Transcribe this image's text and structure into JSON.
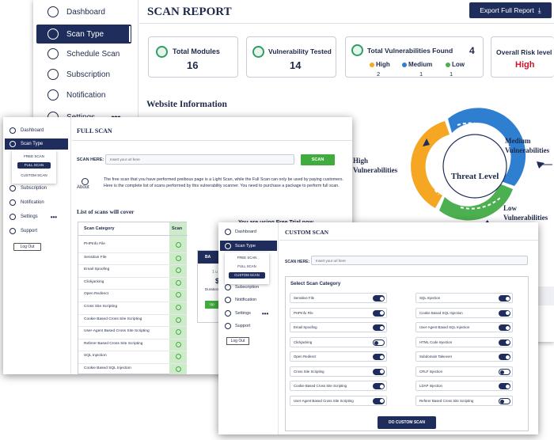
{
  "main": {
    "sidebar": {
      "items": [
        {
          "label": "Dashboard",
          "icon": "dashboard-icon"
        },
        {
          "label": "Scan Type",
          "icon": "scan-icon"
        },
        {
          "label": "Schedule Scan",
          "icon": "clock-icon"
        },
        {
          "label": "Subscription",
          "icon": "dollar-icon"
        },
        {
          "label": "Notification",
          "icon": "bell-icon"
        },
        {
          "label": "Settings",
          "icon": "gear-icon"
        }
      ]
    },
    "title": "SCAN REPORT",
    "export_label": "Export Full Report",
    "cards": {
      "total_modules_label": "Total Modules",
      "total_modules_value": "16",
      "vuln_tested_label": "Vulnerability Tested",
      "vuln_tested_value": "14",
      "total_found_label": "Total Vulnerabilities Found",
      "total_found_value": "4",
      "high_label": "High",
      "high_value": "2",
      "medium_label": "Medium",
      "medium_value": "1",
      "low_label": "Low",
      "low_value": "1",
      "risk_label": "Overall Risk level",
      "risk_value": "High"
    },
    "website_info": "Website Information",
    "threat": {
      "center": "Threat Level",
      "high_1": "High",
      "high_2": "Vulnerabilities",
      "medium_1": "Medium",
      "medium_2": "Vulnerabilities",
      "low_1": "Low",
      "low_2": "Vulnerabilities",
      "colors": {
        "high": "#f5a623",
        "medium": "#2f7fd0",
        "low": "#4caf50"
      }
    }
  },
  "full": {
    "sidebar": {
      "dashboard": "Dashboard",
      "scan_type": "Scan Type",
      "free": "FREE SCAN",
      "full": "FULL SCAN",
      "custom": "CUSTOM SCAN",
      "subscription": "Subscription",
      "notification": "Notification",
      "settings": "Settings",
      "support": "Support",
      "logout": "Log Out"
    },
    "title": "FULL SCAN",
    "scan_here": "SCAN HERE:",
    "url_placeholder": "Insert your url here",
    "scan_button": "SCAN",
    "about_label": "About",
    "about_text": "The free scan that you have performed preibous page is a Light Scan, while the Full Scan can only be used by paying customers. Here is the complete list of scans performed by this vulnerability scanner. You need to purchase a package to perform full scan.",
    "list_title": "List of scans will cover",
    "table_head": {
      "category": "Scan Category",
      "scan": "Scan"
    },
    "rows": [
      "PHPInfo File",
      "Sensitive File",
      "Email Spoofing",
      "Clickjacking",
      "Open Redirect",
      "Cross Site Scripting",
      "Cookie Based Cross Site Scripting",
      "User-Agent Based Cross Site Scripting",
      "Referer Based Cross Site Scripting",
      "SQL Injection",
      "Cookie Based SQL Injection"
    ],
    "trial": "You are using Free Trial now",
    "plan": {
      "tag": "BA",
      "one": "1 u",
      "price": "$4",
      "duration": "Duration",
      "btn": "Up"
    }
  },
  "custom": {
    "sidebar": {
      "dashboard": "Dashboard",
      "scan_type": "Scan Type",
      "free": "FREE SCAN",
      "full": "FULL SCAN",
      "custom": "CUSTOM SCAN",
      "subscription": "Subscription",
      "notification": "Notification",
      "settings": "Settings",
      "support": "Support",
      "logout": "Log Out"
    },
    "title": "CUSTOM SCAN",
    "scan_here": "SCAN HERE:",
    "url_placeholder": "Insert your url here",
    "select_title": "Select Scan Category",
    "left": [
      {
        "label": "Sensitive File",
        "on": true
      },
      {
        "label": "PHPInfo File",
        "on": true
      },
      {
        "label": "Email Spoofing",
        "on": true
      },
      {
        "label": "Clickjacking",
        "on": false
      },
      {
        "label": "Open Redirect",
        "on": true
      },
      {
        "label": "Cross Site Scripting",
        "on": true
      },
      {
        "label": "Cookie Based Cross Site Scripting",
        "on": true
      },
      {
        "label": "User-Agent Based Cross Site Scripting",
        "on": true
      }
    ],
    "right": [
      {
        "label": "SQL Injection",
        "on": true
      },
      {
        "label": "Cookie Based SQL Injection",
        "on": true
      },
      {
        "label": "User-Agent Based SQL Injection",
        "on": true
      },
      {
        "label": "HTML Code Injection",
        "on": true
      },
      {
        "label": "Subdomain Takeover",
        "on": true
      },
      {
        "label": "CRLF Injection",
        "on": false
      },
      {
        "label": "LDAP Injection",
        "on": true
      },
      {
        "label": "Referer Based Cross Site Scripting",
        "on": false
      }
    ],
    "button": "DO CUSTOM SCAN"
  }
}
